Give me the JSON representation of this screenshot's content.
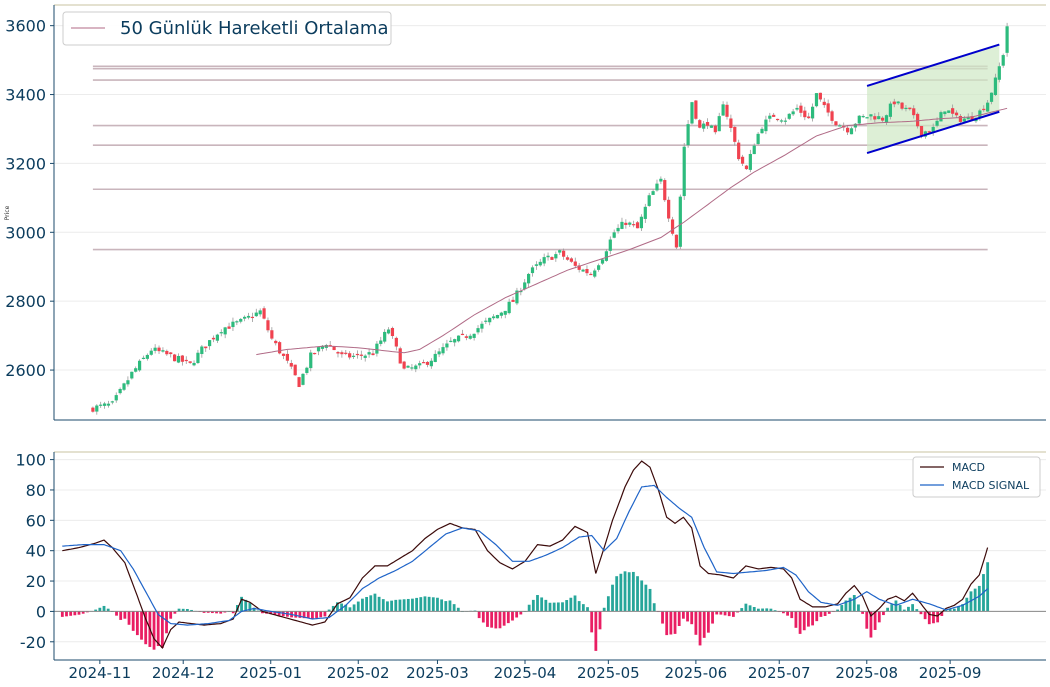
{
  "chart_data": [
    {
      "type": "candlestick",
      "ylabel": "Price",
      "ylim": [
        2455,
        3660
      ],
      "yticks": [
        2600,
        2800,
        3000,
        3200,
        3400,
        3600
      ],
      "grid": true,
      "legend": {
        "placement": "top-left",
        "entries": [
          "50 Günlük Hareketli Ortalama"
        ]
      },
      "colors": {
        "up": "#2dbb7d",
        "down": "#f0424f",
        "ma": "#b06a86",
        "level": "#c9b5bc",
        "channel": "#0000cc",
        "channel_fill": "#cfe8c4"
      },
      "support_resistance": [
        3482,
        3475,
        3442,
        3310,
        3253,
        3125,
        2950
      ],
      "close_anchors": [
        [
          0,
          2490
        ],
        [
          5,
          2500
        ],
        [
          10,
          2590
        ],
        [
          15,
          2660
        ],
        [
          20,
          2640
        ],
        [
          25,
          2615
        ],
        [
          28,
          2660
        ],
        [
          33,
          2720
        ],
        [
          38,
          2740
        ],
        [
          43,
          2770
        ],
        [
          46,
          2690
        ],
        [
          50,
          2620
        ],
        [
          53,
          2560
        ],
        [
          56,
          2640
        ],
        [
          60,
          2680
        ],
        [
          64,
          2640
        ],
        [
          68,
          2640
        ],
        [
          72,
          2650
        ],
        [
          76,
          2720
        ],
        [
          80,
          2600
        ],
        [
          84,
          2610
        ],
        [
          88,
          2640
        ],
        [
          92,
          2680
        ],
        [
          96,
          2700
        ],
        [
          100,
          2730
        ],
        [
          104,
          2760
        ],
        [
          108,
          2800
        ],
        [
          112,
          2880
        ],
        [
          116,
          2920
        ],
        [
          120,
          2940
        ],
        [
          124,
          2900
        ],
        [
          128,
          2880
        ],
        [
          131,
          2930
        ],
        [
          134,
          3000
        ],
        [
          137,
          3030
        ],
        [
          140,
          3010
        ],
        [
          143,
          3100
        ],
        [
          146,
          3150
        ],
        [
          148,
          3050
        ],
        [
          150,
          2960
        ],
        [
          152,
          3250
        ],
        [
          154,
          3380
        ],
        [
          156,
          3300
        ],
        [
          158,
          3320
        ],
        [
          160,
          3280
        ],
        [
          162,
          3380
        ],
        [
          164,
          3300
        ],
        [
          166,
          3220
        ],
        [
          168,
          3180
        ],
        [
          170,
          3260
        ],
        [
          172,
          3310
        ],
        [
          175,
          3340
        ],
        [
          178,
          3330
        ],
        [
          181,
          3360
        ],
        [
          184,
          3330
        ],
        [
          186,
          3400
        ],
        [
          188,
          3360
        ],
        [
          191,
          3320
        ],
        [
          194,
          3300
        ],
        [
          197,
          3330
        ],
        [
          200,
          3340
        ],
        [
          203,
          3330
        ],
        [
          206,
          3380
        ],
        [
          208,
          3360
        ],
        [
          210,
          3350
        ],
        [
          213,
          3290
        ],
        [
          216,
          3300
        ],
        [
          219,
          3360
        ],
        [
          222,
          3330
        ],
        [
          225,
          3330
        ],
        [
          228,
          3350
        ],
        [
          230,
          3380
        ],
        [
          232,
          3440
        ],
        [
          234,
          3520
        ],
        [
          235,
          3600
        ]
      ],
      "ma_anchors": [
        [
          42,
          2645
        ],
        [
          50,
          2660
        ],
        [
          60,
          2670
        ],
        [
          68,
          2665
        ],
        [
          76,
          2655
        ],
        [
          80,
          2650
        ],
        [
          84,
          2660
        ],
        [
          90,
          2700
        ],
        [
          98,
          2760
        ],
        [
          106,
          2810
        ],
        [
          114,
          2850
        ],
        [
          122,
          2890
        ],
        [
          130,
          2920
        ],
        [
          138,
          2950
        ],
        [
          146,
          2985
        ],
        [
          152,
          3030
        ],
        [
          158,
          3080
        ],
        [
          164,
          3130
        ],
        [
          170,
          3175
        ],
        [
          178,
          3225
        ],
        [
          186,
          3280
        ],
        [
          194,
          3310
        ],
        [
          202,
          3318
        ],
        [
          210,
          3322
        ],
        [
          218,
          3330
        ],
        [
          226,
          3335
        ],
        [
          235,
          3360
        ]
      ],
      "channel": {
        "upper": [
          [
            3420,
            3425
          ],
          [
            3552,
            3545
          ]
        ],
        "lower": [
          [
            3420,
            3230
          ],
          [
            3552,
            3350
          ]
        ]
      },
      "x_range": [
        0,
        235
      ]
    },
    {
      "type": "line",
      "ylim": [
        -32,
        105
      ],
      "yticks": [
        -20,
        0,
        20,
        40,
        60,
        80,
        100
      ],
      "grid": true,
      "legend": {
        "placement": "top-right",
        "entries": [
          "MACD",
          "MACD SIGNAL"
        ]
      },
      "x_tick_labels": [
        "2024-11",
        "2024-12",
        "2025-01",
        "2025-02",
        "2025-03",
        "2025-04",
        "2025-05",
        "2025-06",
        "2025-07",
        "2025-08",
        "2025-09"
      ],
      "x_tick_index": [
        9,
        29,
        50,
        71,
        90,
        111,
        131,
        152,
        172,
        193,
        213
      ],
      "series": [
        {
          "name": "MACD",
          "color": "#3b0a0a",
          "anchors": [
            [
              0,
              40
            ],
            [
              4,
              42
            ],
            [
              8,
              45
            ],
            [
              10,
              47
            ],
            [
              12,
              42
            ],
            [
              15,
              32
            ],
            [
              18,
              10
            ],
            [
              20,
              -5
            ],
            [
              22,
              -18
            ],
            [
              24,
              -24
            ],
            [
              26,
              -12
            ],
            [
              28,
              -7
            ],
            [
              31,
              -8
            ],
            [
              34,
              -9
            ],
            [
              38,
              -8
            ],
            [
              41,
              -5
            ],
            [
              43,
              8
            ],
            [
              45,
              6
            ],
            [
              48,
              0
            ],
            [
              52,
              -3
            ],
            [
              56,
              -6
            ],
            [
              60,
              -9
            ],
            [
              63,
              -7
            ],
            [
              66,
              5
            ],
            [
              69,
              9
            ],
            [
              72,
              22
            ],
            [
              75,
              30
            ],
            [
              78,
              30
            ],
            [
              81,
              35
            ],
            [
              84,
              40
            ],
            [
              87,
              48
            ],
            [
              90,
              54
            ],
            [
              93,
              58
            ],
            [
              96,
              55
            ],
            [
              99,
              54
            ],
            [
              102,
              40
            ],
            [
              105,
              32
            ],
            [
              108,
              28
            ],
            [
              111,
              33
            ],
            [
              114,
              44
            ],
            [
              117,
              43
            ],
            [
              120,
              47
            ],
            [
              123,
              56
            ],
            [
              126,
              52
            ],
            [
              128,
              25
            ],
            [
              130,
              42
            ],
            [
              132,
              60
            ],
            [
              135,
              82
            ],
            [
              137,
              93
            ],
            [
              139,
              99
            ],
            [
              141,
              95
            ],
            [
              143,
              80
            ],
            [
              145,
              62
            ],
            [
              147,
              58
            ],
            [
              149,
              62
            ],
            [
              151,
              55
            ],
            [
              153,
              30
            ],
            [
              155,
              25
            ],
            [
              158,
              24
            ],
            [
              161,
              22
            ],
            [
              164,
              30
            ],
            [
              167,
              28
            ],
            [
              170,
              29
            ],
            [
              173,
              28
            ],
            [
              175,
              22
            ],
            [
              177,
              8
            ],
            [
              180,
              3
            ],
            [
              183,
              3
            ],
            [
              186,
              5
            ],
            [
              188,
              12
            ],
            [
              190,
              17
            ],
            [
              192,
              10
            ],
            [
              194,
              -3
            ],
            [
              196,
              2
            ],
            [
              198,
              8
            ],
            [
              200,
              10
            ],
            [
              202,
              7
            ],
            [
              204,
              12
            ],
            [
              206,
              5
            ],
            [
              208,
              -2
            ],
            [
              210,
              -3
            ],
            [
              212,
              2
            ],
            [
              214,
              4
            ],
            [
              216,
              8
            ],
            [
              218,
              18
            ],
            [
              220,
              24
            ],
            [
              222,
              42
            ]
          ]
        },
        {
          "name": "MACD SIGNAL",
          "color": "#1f64c8",
          "anchors": [
            [
              0,
              43
            ],
            [
              5,
              44
            ],
            [
              10,
              44
            ],
            [
              14,
              40
            ],
            [
              17,
              28
            ],
            [
              20,
              13
            ],
            [
              23,
              -2
            ],
            [
              26,
              -8
            ],
            [
              30,
              -9
            ],
            [
              35,
              -8
            ],
            [
              40,
              -6
            ],
            [
              43,
              0
            ],
            [
              46,
              2
            ],
            [
              50,
              0
            ],
            [
              55,
              -2
            ],
            [
              60,
              -5
            ],
            [
              64,
              -4
            ],
            [
              68,
              4
            ],
            [
              72,
              15
            ],
            [
              76,
              22
            ],
            [
              80,
              27
            ],
            [
              84,
              33
            ],
            [
              88,
              42
            ],
            [
              92,
              51
            ],
            [
              96,
              55
            ],
            [
              100,
              53
            ],
            [
              104,
              44
            ],
            [
              108,
              33
            ],
            [
              112,
              33
            ],
            [
              116,
              37
            ],
            [
              120,
              42
            ],
            [
              124,
              49
            ],
            [
              127,
              50
            ],
            [
              130,
              40
            ],
            [
              133,
              48
            ],
            [
              136,
              66
            ],
            [
              139,
              82
            ],
            [
              142,
              83
            ],
            [
              145,
              75
            ],
            [
              148,
              68
            ],
            [
              151,
              62
            ],
            [
              154,
              42
            ],
            [
              157,
              26
            ],
            [
              161,
              25
            ],
            [
              165,
              26
            ],
            [
              169,
              27
            ],
            [
              173,
              29
            ],
            [
              176,
              24
            ],
            [
              179,
              13
            ],
            [
              182,
              6
            ],
            [
              186,
              4
            ],
            [
              190,
              8
            ],
            [
              193,
              13
            ],
            [
              196,
              8
            ],
            [
              200,
              4
            ],
            [
              204,
              8
            ],
            [
              208,
              5
            ],
            [
              212,
              1
            ],
            [
              216,
              4
            ],
            [
              220,
              10
            ],
            [
              222,
              15
            ]
          ]
        }
      ],
      "x_range": [
        -2,
        236
      ]
    }
  ]
}
